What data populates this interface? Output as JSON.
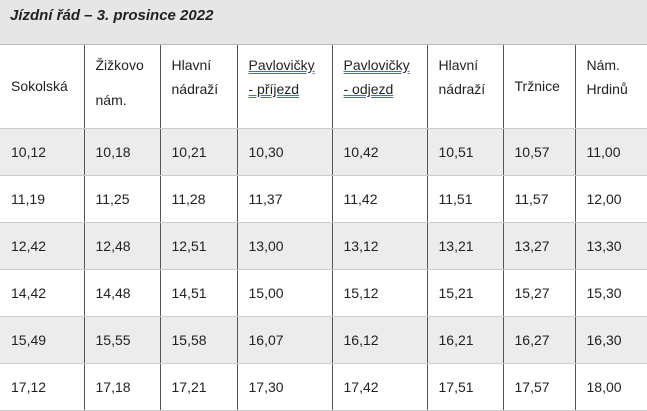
{
  "title": "Jízdní řád – 3. prosince 2022",
  "table": {
    "header": [
      [
        "Sokolská"
      ],
      [
        "Žižkovo",
        "nám."
      ],
      [
        "Hlavní",
        "nádraží"
      ],
      [
        "Pavlovičky",
        "- příjezd"
      ],
      [
        "Pavlovičky",
        "- odjezd"
      ],
      [
        "Hlavní",
        "nádraží"
      ],
      [
        "Tržnice"
      ],
      [
        "Nám.",
        "Hrdinů"
      ]
    ],
    "rows": [
      [
        "10,12",
        "10,18",
        "10,21",
        "10,30",
        "10,42",
        "10,51",
        "10,57",
        "11,00"
      ],
      [
        "11,19",
        "11,25",
        "11,28",
        "11,37",
        "11,42",
        "11,51",
        "11,57",
        "12,00"
      ],
      [
        "12,42",
        "12,48",
        "12,51",
        "13,00",
        "13,12",
        "13,21",
        "13,27",
        "13,30"
      ],
      [
        "14,42",
        "14,48",
        "14,51",
        "15,00",
        "15,12",
        "15,21",
        "15,27",
        "15,30"
      ],
      [
        "15,49",
        "15,55",
        "15,58",
        "16,07",
        "16,12",
        "16,21",
        "16,27",
        "16,30"
      ],
      [
        "17,12",
        "17,18",
        "17,21",
        "17,30",
        "17,42",
        "17,51",
        "17,57",
        "18,00"
      ]
    ]
  }
}
